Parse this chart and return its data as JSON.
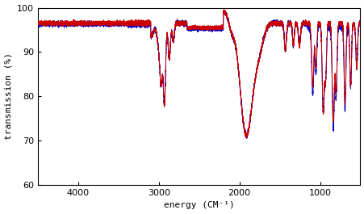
{
  "title": "",
  "xlabel": "energy (CM⁻¹)",
  "ylabel": "transmission (%)",
  "xlim": [
    4500,
    500
  ],
  "ylim": [
    60,
    100
  ],
  "yticks": [
    60,
    70,
    80,
    90,
    100
  ],
  "xticks": [
    4000,
    3000,
    2000,
    1000
  ],
  "color_native": "#cc0000",
  "color_plasma": "#0000cc",
  "bg_color": "#ffffff",
  "linewidth": 0.7,
  "noise_seed": 1
}
